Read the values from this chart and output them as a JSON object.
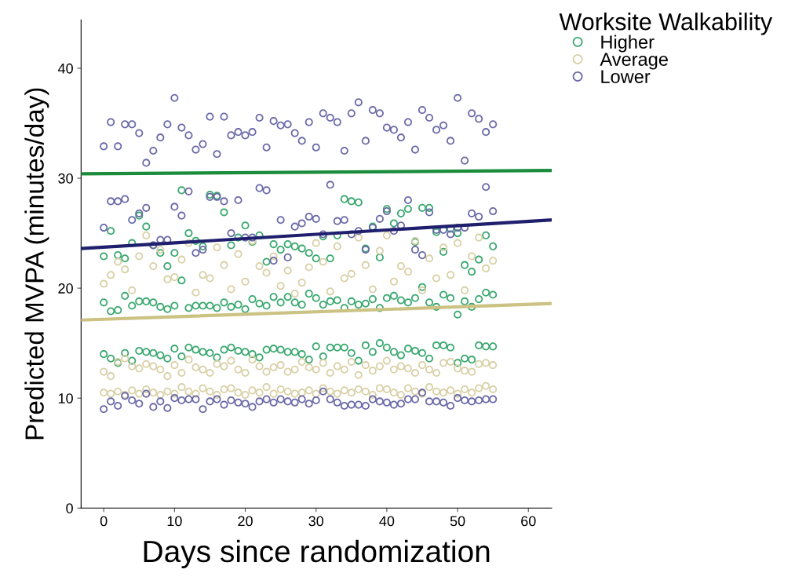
{
  "chart_data": {
    "type": "scatter",
    "xlabel": "Days since randomization",
    "ylabel": "Predicted MVPA (minutes/day)",
    "legend_title": "Worksite Walkability",
    "xlim": [
      -3.2,
      63.3
    ],
    "ylim": [
      0,
      44.4
    ],
    "xticks": [
      0,
      10,
      20,
      30,
      40,
      50,
      60
    ],
    "yticks": [
      0,
      10,
      20,
      30,
      40
    ],
    "grid": false,
    "legend": "top right",
    "marker": "circle",
    "series": [
      {
        "name": "Higher",
        "color": "#3aa870",
        "x": [
          0,
          1,
          2,
          3,
          4,
          5,
          6,
          7,
          8,
          9,
          10,
          11,
          12,
          13,
          14,
          15,
          16,
          17,
          18,
          19,
          20,
          21,
          22,
          23,
          24,
          25,
          26,
          27,
          28,
          29,
          30,
          31,
          32,
          33,
          34,
          35,
          36,
          37,
          38,
          39,
          40,
          41,
          42,
          43,
          44,
          45,
          46,
          47,
          48,
          49,
          50,
          51,
          52,
          53,
          54,
          55,
          0,
          1,
          2,
          3,
          4,
          5,
          6,
          7,
          8,
          9,
          10,
          11,
          12,
          13,
          14,
          15,
          16,
          17,
          18,
          19,
          20,
          21,
          22,
          23,
          24,
          25,
          26,
          27,
          28,
          29,
          30,
          31,
          32,
          33,
          34,
          35,
          36,
          37,
          38,
          39,
          40,
          41,
          42,
          43,
          44,
          45,
          46,
          47,
          48,
          49,
          50,
          51,
          52,
          53,
          54,
          55,
          0,
          1,
          2,
          3,
          4,
          5,
          6,
          7,
          8,
          9,
          10,
          11,
          12,
          13,
          14,
          15,
          16,
          17,
          18,
          19,
          20,
          21,
          22,
          23,
          24,
          25,
          26,
          27,
          28,
          29,
          30,
          31,
          32,
          33,
          34,
          35,
          36,
          37,
          38,
          39,
          40,
          41,
          42,
          43,
          44,
          45,
          46,
          47,
          48,
          49,
          50,
          51,
          52,
          53,
          54,
          55
        ],
        "values": [
          22.9,
          25.2,
          23.0,
          22.7,
          24.1,
          26.6,
          25.6,
          23.9,
          23.2,
          22.0,
          23.2,
          28.9,
          25.0,
          24.3,
          23.8,
          28.5,
          28.4,
          26.9,
          23.9,
          24.6,
          25.7,
          24.2,
          24.8,
          22.4,
          24.0,
          23.5,
          24.0,
          23.8,
          23.6,
          23.2,
          22.7,
          24.7,
          22.7,
          24.8,
          28.1,
          27.9,
          27.8,
          23.6,
          25.6,
          22.8,
          27.2,
          25.9,
          26.8,
          27.2,
          24.2,
          27.3,
          27.3,
          25.1,
          23.3,
          25.4,
          25.0,
          22.1,
          21.5,
          22.6,
          24.8,
          23.8,
          18.7,
          17.9,
          18.0,
          19.3,
          18.4,
          18.8,
          18.8,
          18.7,
          18.3,
          18.1,
          18.4,
          20.7,
          18.2,
          18.4,
          18.4,
          18.4,
          18.2,
          18.7,
          18.3,
          18.5,
          18.1,
          19.0,
          18.6,
          18.4,
          19.2,
          18.7,
          19.2,
          18.7,
          18.5,
          19.5,
          19.1,
          18.5,
          18.8,
          18.9,
          18.2,
          18.8,
          18.5,
          18.6,
          19.0,
          18.2,
          19.1,
          19.3,
          18.9,
          18.7,
          19.1,
          20.1,
          18.7,
          18.3,
          19.4,
          19.1,
          17.6,
          18.8,
          18.3,
          19.0,
          19.6,
          19.4,
          14.0,
          13.6,
          13.2,
          14.1,
          13.4,
          14.3,
          14.2,
          14.1,
          13.9,
          13.6,
          14.5,
          13.8,
          14.6,
          14.4,
          14.2,
          14.1,
          13.7,
          14.4,
          14.6,
          14.3,
          14.2,
          14.0,
          13.7,
          14.4,
          14.5,
          14.4,
          14.2,
          14.2,
          14.0,
          13.5,
          14.7,
          13.8,
          14.6,
          14.6,
          14.6,
          14.1,
          13.4,
          14.8,
          14.2,
          15.0,
          14.6,
          14.2,
          13.9,
          14.5,
          14.3,
          14.1,
          13.6,
          14.8,
          14.8,
          14.6,
          13.2,
          13.6,
          13.5,
          14.8,
          14.7,
          14.7
        ]
      },
      {
        "name": "Average",
        "color": "#d9d0a6",
        "x": [
          0,
          1,
          2,
          3,
          4,
          5,
          6,
          7,
          8,
          9,
          10,
          11,
          12,
          13,
          14,
          15,
          16,
          17,
          18,
          19,
          20,
          21,
          22,
          23,
          24,
          25,
          26,
          27,
          28,
          29,
          30,
          31,
          32,
          33,
          34,
          35,
          36,
          37,
          38,
          39,
          40,
          41,
          42,
          43,
          44,
          45,
          46,
          47,
          48,
          49,
          50,
          51,
          52,
          53,
          54,
          55,
          0,
          1,
          2,
          3,
          4,
          5,
          6,
          7,
          8,
          9,
          10,
          11,
          12,
          13,
          14,
          15,
          16,
          17,
          18,
          19,
          20,
          21,
          22,
          23,
          24,
          25,
          26,
          27,
          28,
          29,
          30,
          31,
          32,
          33,
          34,
          35,
          36,
          37,
          38,
          39,
          40,
          41,
          42,
          43,
          44,
          45,
          46,
          47,
          48,
          49,
          50,
          51,
          52,
          53,
          54,
          55,
          0,
          1,
          2,
          3,
          4,
          5,
          6,
          7,
          8,
          9,
          10,
          11,
          12,
          13,
          14,
          15,
          16,
          17,
          18,
          19,
          20,
          21,
          22,
          23,
          24,
          25,
          26,
          27,
          28,
          29,
          30,
          31,
          32,
          33,
          34,
          35,
          36,
          37,
          38,
          39,
          40,
          41,
          42,
          43,
          44,
          45,
          46,
          47,
          48,
          49,
          50,
          51,
          52,
          53,
          54,
          55
        ],
        "values": [
          20.4,
          21.2,
          22.4,
          21.7,
          19.8,
          22.9,
          24.8,
          22.0,
          23.5,
          20.8,
          21.0,
          22.6,
          24.1,
          19.6,
          21.2,
          20.9,
          23.7,
          22.1,
          19.9,
          23.1,
          20.6,
          24.3,
          22.0,
          21.4,
          22.9,
          20.2,
          21.6,
          19.5,
          20.5,
          21.9,
          24.1,
          22.4,
          19.7,
          23.8,
          20.9,
          21.3,
          24.6,
          22.1,
          19.9,
          23.4,
          24.8,
          20.6,
          22.0,
          21.5,
          24.3,
          19.8,
          22.7,
          20.9,
          23.7,
          21.2,
          24.1,
          19.8,
          22.9,
          24.6,
          21.8,
          22.5,
          12.4,
          12.0,
          13.3,
          13.6,
          12.9,
          12.7,
          13.1,
          12.9,
          12.6,
          12.0,
          13.0,
          12.3,
          13.5,
          12.8,
          12.6,
          12.3,
          13.1,
          12.9,
          13.4,
          12.6,
          12.3,
          13.5,
          12.9,
          12.4,
          12.8,
          13.0,
          12.4,
          12.6,
          13.3,
          12.8,
          12.6,
          13.2,
          12.3,
          12.9,
          12.6,
          13.3,
          12.1,
          13.0,
          12.5,
          12.9,
          13.4,
          12.6,
          12.9,
          12.7,
          12.3,
          13.0,
          12.6,
          12.3,
          13.2,
          13.3,
          12.7,
          12.5,
          12.4,
          13.1,
          13.2,
          13.0,
          10.5,
          10.4,
          10.6,
          10.3,
          10.7,
          10.4,
          10.8,
          10.5,
          10.3,
          10.6,
          10.4,
          11.0,
          10.6,
          10.4,
          10.9,
          10.6,
          10.3,
          10.8,
          10.9,
          10.5,
          10.3,
          10.7,
          10.5,
          11.0,
          10.4,
          10.8,
          10.6,
          10.4,
          10.5,
          10.7,
          10.4,
          10.9,
          10.6,
          10.4,
          10.7,
          10.5,
          10.8,
          10.6,
          10.3,
          10.9,
          10.8,
          10.5,
          10.3,
          10.9,
          10.6,
          10.4,
          11.0,
          10.6,
          10.5,
          10.7,
          10.4,
          10.8,
          10.5,
          10.9,
          11.1,
          10.8
        ]
      },
      {
        "name": "Lower",
        "color": "#6b6aa8",
        "x": [
          0,
          1,
          2,
          3,
          4,
          5,
          6,
          7,
          8,
          9,
          10,
          11,
          12,
          13,
          14,
          15,
          16,
          17,
          18,
          19,
          20,
          21,
          22,
          23,
          24,
          25,
          26,
          27,
          28,
          29,
          30,
          31,
          32,
          33,
          34,
          35,
          36,
          37,
          38,
          39,
          40,
          41,
          42,
          43,
          44,
          45,
          46,
          47,
          48,
          49,
          50,
          51,
          52,
          53,
          54,
          55,
          0,
          1,
          2,
          3,
          4,
          5,
          6,
          7,
          8,
          9,
          10,
          11,
          12,
          13,
          14,
          15,
          16,
          17,
          18,
          19,
          20,
          21,
          22,
          23,
          24,
          25,
          26,
          27,
          28,
          29,
          30,
          31,
          32,
          33,
          34,
          35,
          36,
          37,
          38,
          39,
          40,
          41,
          42,
          43,
          44,
          45,
          46,
          47,
          48,
          49,
          50,
          51,
          52,
          53,
          54,
          55,
          0,
          1,
          2,
          3,
          4,
          5,
          6,
          7,
          8,
          9,
          10,
          11,
          12,
          13,
          14,
          15,
          16,
          17,
          18,
          19,
          20,
          21,
          22,
          23,
          24,
          25,
          26,
          27,
          28,
          29,
          30,
          31,
          32,
          33,
          34,
          35,
          36,
          37,
          38,
          39,
          40,
          41,
          42,
          43,
          44,
          45,
          46,
          47,
          48,
          49,
          50,
          51,
          52,
          53,
          54,
          55
        ],
        "values": [
          32.9,
          35.1,
          32.9,
          34.9,
          34.9,
          34.1,
          31.4,
          32.5,
          33.7,
          34.9,
          37.3,
          34.6,
          33.9,
          32.6,
          33.1,
          35.6,
          32.2,
          35.6,
          33.9,
          34.2,
          33.9,
          34.2,
          35.5,
          32.8,
          35.2,
          34.8,
          34.9,
          34.1,
          33.4,
          35.1,
          32.8,
          35.9,
          35.5,
          35.1,
          32.5,
          35.9,
          36.9,
          33.4,
          36.2,
          35.9,
          34.6,
          34.4,
          33.7,
          35.1,
          32.6,
          36.2,
          35.5,
          34.4,
          34.8,
          33.4,
          37.3,
          31.6,
          35.9,
          35.4,
          34.2,
          34.9,
          25.5,
          27.9,
          27.9,
          28.1,
          26.2,
          26.8,
          27.3,
          23.9,
          24.4,
          24.4,
          27.4,
          26.6,
          28.8,
          23.2,
          23.5,
          28.3,
          28.3,
          27.9,
          25.0,
          28.0,
          24.6,
          24.6,
          29.1,
          28.9,
          22.5,
          26.2,
          22.8,
          25.6,
          25.9,
          26.5,
          26.3,
          24.9,
          29.4,
          26.1,
          26.2,
          24.9,
          25.2,
          23.5,
          25.5,
          26.3,
          27.0,
          25.2,
          25.7,
          28.0,
          23.5,
          23.0,
          26.9,
          25.3,
          25.3,
          24.9,
          25.5,
          25.5,
          26.8,
          26.5,
          29.2,
          27.0,
          9.0,
          9.7,
          9.3,
          10.2,
          9.8,
          9.5,
          10.4,
          9.2,
          9.7,
          9.1,
          10.0,
          9.8,
          9.9,
          9.9,
          9.0,
          9.7,
          9.9,
          9.4,
          9.8,
          9.6,
          9.5,
          9.2,
          9.7,
          9.9,
          9.6,
          9.9,
          9.7,
          9.6,
          9.9,
          9.5,
          9.8,
          10.6,
          9.9,
          9.6,
          9.3,
          9.4,
          9.4,
          9.3,
          9.9,
          9.7,
          9.6,
          9.4,
          9.5,
          9.9,
          9.9,
          10.5,
          9.7,
          9.7,
          9.6,
          9.3,
          10.0,
          9.8,
          9.7,
          9.8,
          9.9,
          9.9
        ]
      },
      {
        "type": "line",
        "marker": "none",
        "color": "#1a8c3c",
        "x": [
          -3.2,
          63.3
        ],
        "values": [
          30.4,
          30.7
        ]
      },
      {
        "type": "line",
        "marker": "none",
        "color": "#cbc283",
        "x": [
          -3.2,
          63.3
        ],
        "values": [
          17.1,
          18.6
        ]
      },
      {
        "type": "line",
        "marker": "none",
        "color": "#1f1f6e",
        "x": [
          -3.2,
          63.3
        ],
        "values": [
          23.6,
          26.2
        ]
      }
    ]
  }
}
